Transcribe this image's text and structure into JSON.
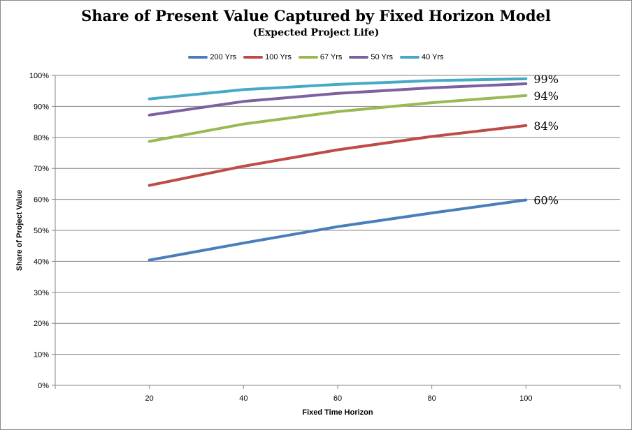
{
  "chart_data": {
    "type": "line",
    "title": "Share of Present Value Captured by Fixed Horizon Model",
    "subtitle": "(Expected Project Life)",
    "xlabel": "Fixed Time Horizon",
    "ylabel": "Share of Project Value",
    "x": [
      20,
      40,
      60,
      80,
      100
    ],
    "xlim": [
      0,
      120
    ],
    "ylim": [
      0,
      1
    ],
    "y_ticks": [
      "0%",
      "10%",
      "20%",
      "30%",
      "40%",
      "50%",
      "60%",
      "70%",
      "80%",
      "90%",
      "100%"
    ],
    "x_ticks": [
      "20",
      "40",
      "60",
      "80",
      "100"
    ],
    "grid": "horizontal",
    "legend_position": "top",
    "series": [
      {
        "name": "200 Yrs",
        "color": "#4a7ebb",
        "values": [
          0.404,
          0.459,
          0.512,
          0.556,
          0.598
        ],
        "end_label": "60%"
      },
      {
        "name": "100 Yrs",
        "color": "#be4b48",
        "values": [
          0.645,
          0.707,
          0.76,
          0.803,
          0.838
        ],
        "end_label": "84%"
      },
      {
        "name": "67 Yrs",
        "color": "#98b954",
        "values": [
          0.787,
          0.843,
          0.883,
          0.912,
          0.935
        ],
        "end_label": "94%"
      },
      {
        "name": "50 Yrs",
        "color": "#7d60a0",
        "values": [
          0.872,
          0.916,
          0.942,
          0.96,
          0.973
        ],
        "end_label": ""
      },
      {
        "name": "40 Yrs",
        "color": "#46aac5",
        "values": [
          0.924,
          0.954,
          0.971,
          0.983,
          0.989
        ],
        "end_label": "99%"
      }
    ]
  }
}
